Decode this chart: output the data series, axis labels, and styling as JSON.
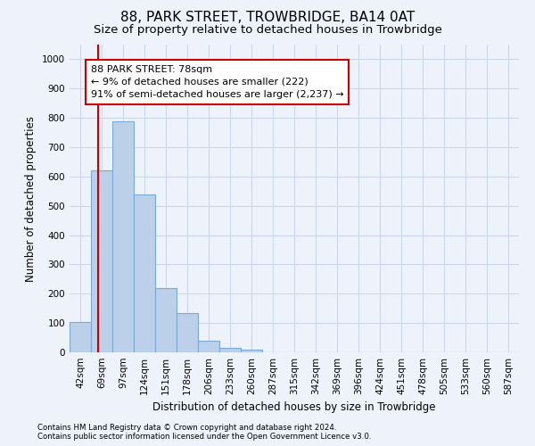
{
  "title": "88, PARK STREET, TROWBRIDGE, BA14 0AT",
  "subtitle": "Size of property relative to detached houses in Trowbridge",
  "xlabel": "Distribution of detached houses by size in Trowbridge",
  "ylabel": "Number of detached properties",
  "categories": [
    "42sqm",
    "69sqm",
    "97sqm",
    "124sqm",
    "151sqm",
    "178sqm",
    "206sqm",
    "233sqm",
    "260sqm",
    "287sqm",
    "315sqm",
    "342sqm",
    "369sqm",
    "396sqm",
    "424sqm",
    "451sqm",
    "478sqm",
    "505sqm",
    "533sqm",
    "560sqm",
    "587sqm"
  ],
  "values": [
    105,
    622,
    788,
    538,
    220,
    135,
    40,
    15,
    10,
    0,
    0,
    0,
    0,
    0,
    0,
    0,
    0,
    0,
    0,
    0,
    0
  ],
  "bar_color": "#bdd0e9",
  "bar_edge_color": "#7aaad4",
  "property_sqm": 78,
  "annotation_line1": "88 PARK STREET: 78sqm",
  "annotation_line2": "← 9% of detached houses are smaller (222)",
  "annotation_line3": "91% of semi-detached houses are larger (2,237) →",
  "annotation_box_facecolor": "#ffffff",
  "annotation_box_edgecolor": "#cc0000",
  "vline_color": "#cc0000",
  "ylim": [
    0,
    1050
  ],
  "yticks": [
    0,
    100,
    200,
    300,
    400,
    500,
    600,
    700,
    800,
    900,
    1000
  ],
  "grid_color": "#c8d4e8",
  "footnote1": "Contains HM Land Registry data © Crown copyright and database right 2024.",
  "footnote2": "Contains public sector information licensed under the Open Government Licence v3.0.",
  "background_color": "#eef2fa",
  "title_fontsize": 11,
  "subtitle_fontsize": 9.5,
  "axis_label_fontsize": 8.5,
  "tick_fontsize": 7.5
}
